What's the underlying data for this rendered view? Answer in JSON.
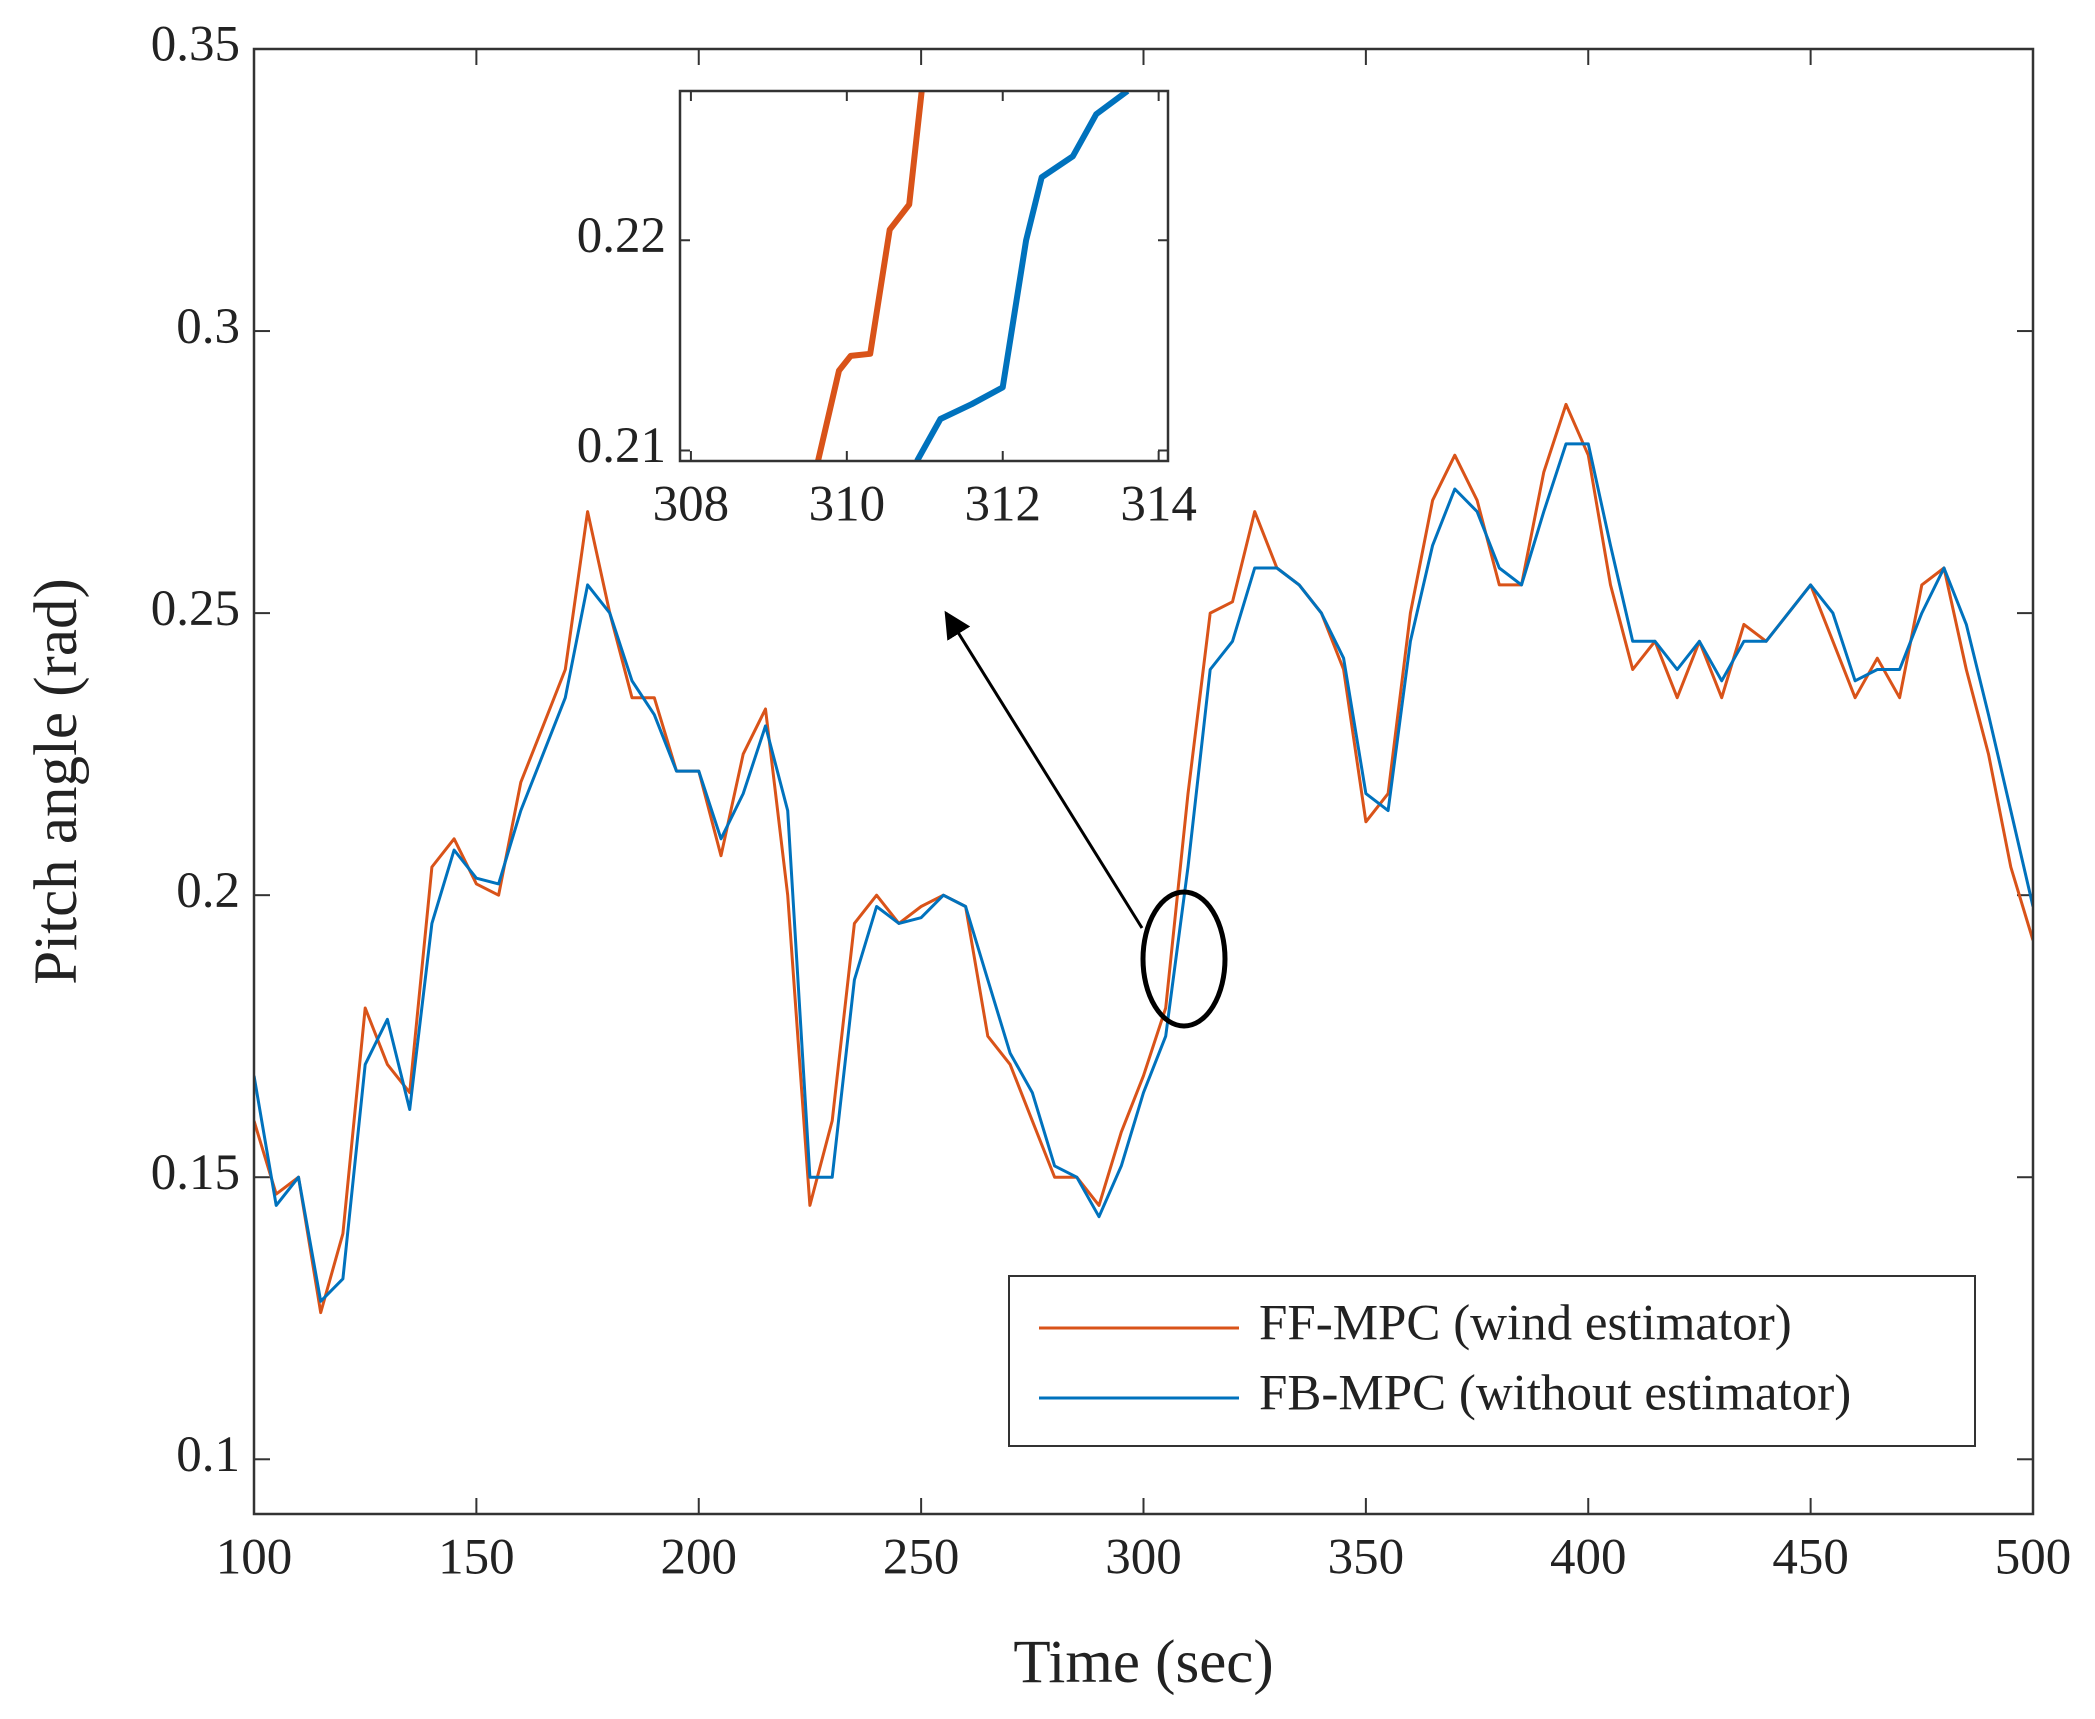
{
  "chart_data": [
    {
      "type": "line",
      "xlabel": "Time (sec)",
      "ylabel": "Pitch angle (rad)",
      "x": [
        100,
        105,
        110,
        115,
        120,
        125,
        130,
        135,
        140,
        145,
        150,
        155,
        160,
        165,
        170,
        175,
        180,
        185,
        190,
        195,
        200,
        205,
        210,
        215,
        220,
        225,
        230,
        235,
        240,
        245,
        250,
        255,
        260,
        265,
        270,
        275,
        280,
        285,
        290,
        295,
        300,
        305,
        310,
        315,
        320,
        325,
        330,
        335,
        340,
        345,
        350,
        355,
        360,
        365,
        370,
        375,
        380,
        385,
        390,
        395,
        400,
        405,
        410,
        415,
        420,
        425,
        430,
        435,
        440,
        445,
        450,
        455,
        460,
        465,
        470,
        475,
        480,
        485,
        490,
        495,
        500
      ],
      "series": [
        {
          "name": "FF-MPC (wind estimator)",
          "color": "#D95319",
          "values": [
            0.16,
            0.147,
            0.15,
            0.126,
            0.14,
            0.18,
            0.17,
            0.165,
            0.205,
            0.21,
            0.202,
            0.2,
            0.22,
            0.23,
            0.24,
            0.268,
            0.25,
            0.235,
            0.235,
            0.222,
            0.222,
            0.207,
            0.225,
            0.233,
            0.2,
            0.145,
            0.16,
            0.195,
            0.2,
            0.195,
            0.198,
            0.2,
            0.198,
            0.175,
            0.17,
            0.16,
            0.15,
            0.15,
            0.145,
            0.158,
            0.168,
            0.18,
            0.218,
            0.25,
            0.252,
            0.268,
            0.258,
            0.255,
            0.25,
            0.24,
            0.213,
            0.218,
            0.25,
            0.27,
            0.278,
            0.27,
            0.255,
            0.255,
            0.275,
            0.287,
            0.278,
            0.255,
            0.24,
            0.245,
            0.235,
            0.245,
            0.235,
            0.248,
            0.245,
            0.25,
            0.255,
            0.245,
            0.235,
            0.242,
            0.235,
            0.255,
            0.258,
            0.24,
            0.225,
            0.205,
            0.192
          ]
        },
        {
          "name": "FB-MPC (without estimator)",
          "color": "#0072BD",
          "values": [
            0.168,
            0.145,
            0.15,
            0.128,
            0.132,
            0.17,
            0.178,
            0.162,
            0.195,
            0.208,
            0.203,
            0.202,
            0.215,
            0.225,
            0.235,
            0.255,
            0.25,
            0.238,
            0.232,
            0.222,
            0.222,
            0.21,
            0.218,
            0.23,
            0.215,
            0.15,
            0.15,
            0.185,
            0.198,
            0.195,
            0.196,
            0.2,
            0.198,
            0.185,
            0.172,
            0.165,
            0.152,
            0.15,
            0.143,
            0.152,
            0.165,
            0.175,
            0.205,
            0.24,
            0.245,
            0.258,
            0.258,
            0.255,
            0.25,
            0.242,
            0.218,
            0.215,
            0.245,
            0.262,
            0.272,
            0.268,
            0.258,
            0.255,
            0.268,
            0.28,
            0.28,
            0.262,
            0.245,
            0.245,
            0.24,
            0.245,
            0.238,
            0.245,
            0.245,
            0.25,
            0.255,
            0.25,
            0.238,
            0.24,
            0.24,
            0.25,
            0.258,
            0.248,
            0.232,
            0.215,
            0.198
          ]
        }
      ],
      "xlim": [
        100,
        500
      ],
      "xticks": [
        100,
        150,
        200,
        250,
        300,
        350,
        400,
        450,
        500
      ],
      "ylim": [
        0.0903,
        0.35
      ],
      "yticks": [
        0.1,
        0.15,
        0.2,
        0.25,
        0.3,
        0.35
      ],
      "legend": "lower right"
    },
    {
      "type": "line",
      "series": [
        {
          "color": "#D95319",
          "x": [
            309.63,
            309.9,
            310.05,
            310.3,
            310.55,
            310.8,
            310.96
          ],
          "values": [
            0.2095,
            0.2138,
            0.2145,
            0.2146,
            0.2205,
            0.2217,
            0.2271
          ]
        },
        {
          "color": "#0072BD",
          "x": [
            310.9,
            311.2,
            311.6,
            312.0,
            312.3,
            312.5,
            312.9,
            313.2,
            313.6
          ],
          "values": [
            0.2095,
            0.2115,
            0.2122,
            0.213,
            0.22,
            0.223,
            0.224,
            0.226,
            0.2271
          ]
        }
      ],
      "xlim": [
        307.86,
        314.12
      ],
      "xticks": [
        308,
        310,
        312,
        314
      ],
      "ylim": [
        0.2095,
        0.2271
      ],
      "yticks": [
        0.21,
        0.22
      ]
    }
  ]
}
